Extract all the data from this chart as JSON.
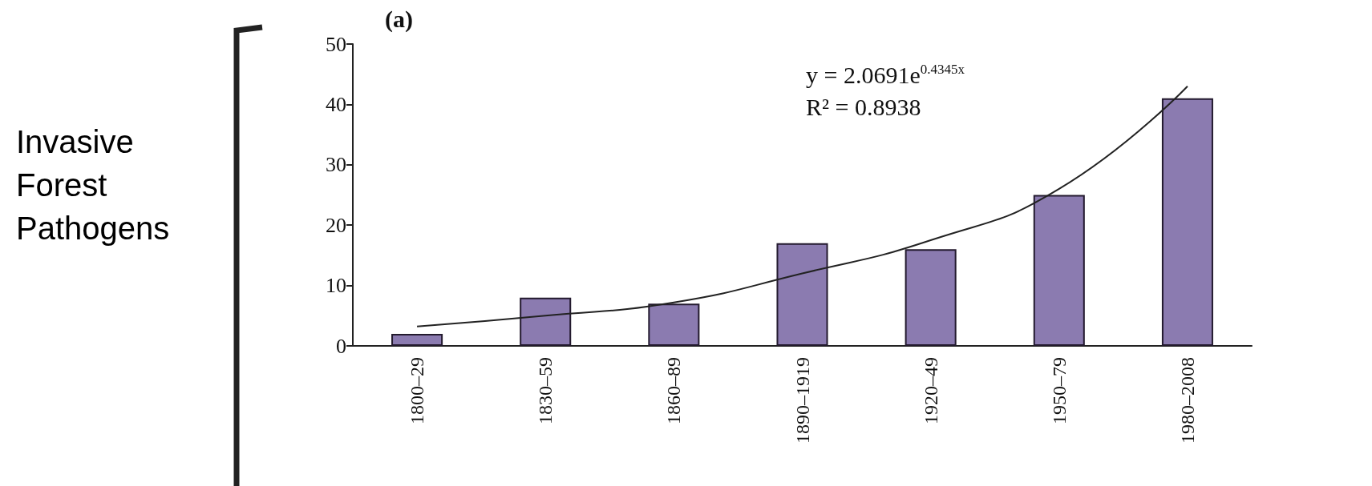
{
  "chart_data": {
    "type": "bar",
    "ylabel": "Invasive Forest Pathogens",
    "annotations": [
      "(a)",
      "y = 2.0691e$^{0.4345x}$",
      "R² = 0.8938"
    ],
    "categories": [
      "1800–29",
      "1830–59",
      "1860–89",
      "1890–1919",
      "1920–49",
      "1950–79",
      "1980–2008"
    ],
    "series": [
      {
        "color": "#8b7bb0",
        "values": [
          2,
          8,
          7,
          17,
          16,
          25,
          41
        ]
      },
      {
        "type": "line",
        "color": "#222222",
        "x": [
          "1800–29",
          "1830–59",
          "1860–89",
          "1890–1919",
          "1920–49",
          "1950–79",
          "1980–2008"
        ],
        "values": [
          3.2,
          5,
          7.2,
          12,
          17.5,
          26,
          43
        ]
      }
    ],
    "ylim": [
      0,
      50
    ],
    "yticks": [
      0,
      10,
      20,
      30,
      40,
      50
    ],
    "marker": "none"
  }
}
